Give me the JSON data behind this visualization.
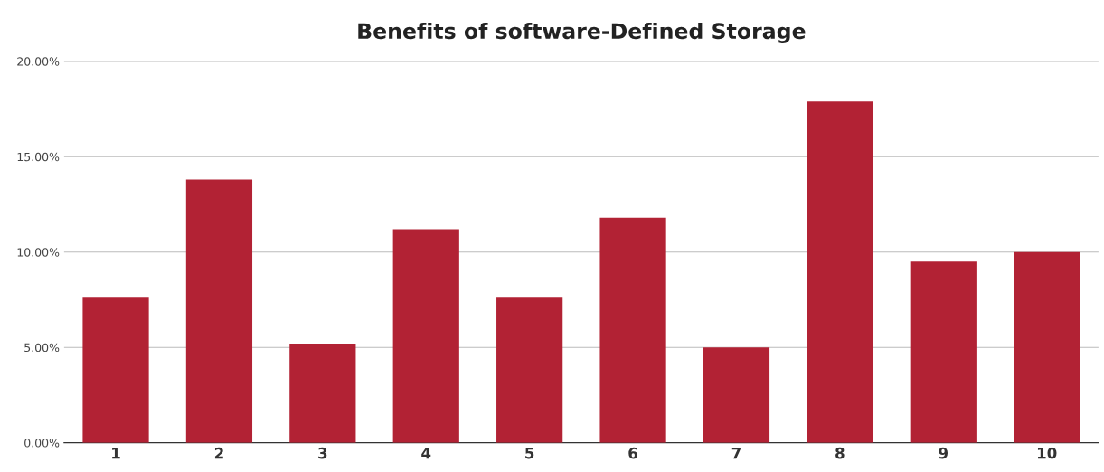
{
  "chart_data": {
    "type": "bar",
    "title": "Benefits of software-Defined Storage",
    "categories": [
      "1",
      "2",
      "3",
      "4",
      "5",
      "6",
      "7",
      "8",
      "9",
      "10"
    ],
    "values": [
      7.6,
      13.8,
      5.2,
      11.2,
      7.6,
      11.8,
      5.0,
      17.9,
      9.5,
      10.0
    ],
    "color": "#b22234",
    "ylim": [
      0,
      20
    ],
    "yticks": [
      {
        "value": 0,
        "label": "0.00%"
      },
      {
        "value": 5,
        "label": "5.00%"
      },
      {
        "value": 10,
        "label": "10.00%"
      },
      {
        "value": 15,
        "label": "15.00%"
      },
      {
        "value": 20,
        "label": "20.00%"
      }
    ],
    "grid": "y"
  }
}
